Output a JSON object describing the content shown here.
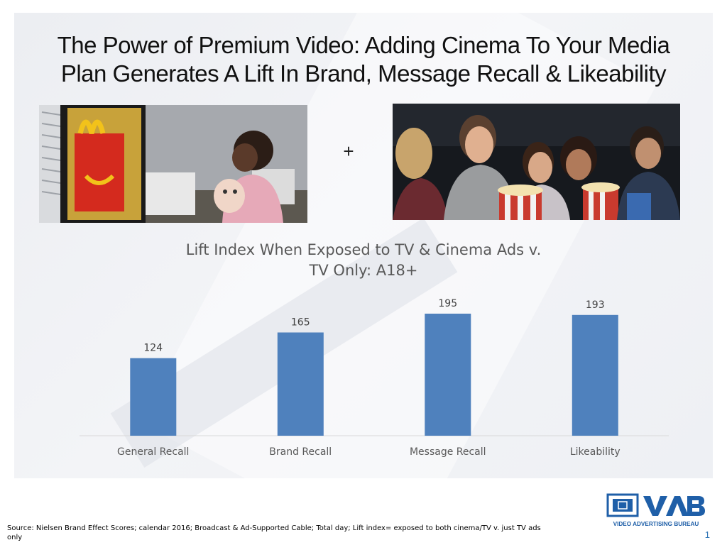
{
  "slide": {
    "title_line1": "The Power of Premium Video: Adding Cinema To Your Media",
    "title_line2": "Plan Generates A Lift In Brand, Message Recall & Likeability",
    "plus_sign": "+",
    "source_note": "Source: Nielsen Brand Effect Scores; calendar 2016; Broadcast & Ad-Supported Cable; Total day; Lift index= exposed to both cinema/TV v. just TV ads only",
    "page_number": "1",
    "logo": {
      "name": "VAB",
      "tagline": "VIDEO ADVERTISING BUREAU",
      "color": "#1f5fa8"
    }
  },
  "chart_data": {
    "type": "bar",
    "title_line1": "Lift Index When Exposed to TV & Cinema Ads v.",
    "title_line2": "TV Only: A18+",
    "categories": [
      "General Recall",
      "Brand Recall",
      "Message Recall",
      "Likeability"
    ],
    "values": [
      124,
      165,
      195,
      193
    ],
    "data_labels": [
      "124",
      "165",
      "195",
      "193"
    ],
    "ylim": [
      0,
      220
    ],
    "grid": false,
    "legend": "none",
    "bar_color": "#4f81bd"
  }
}
